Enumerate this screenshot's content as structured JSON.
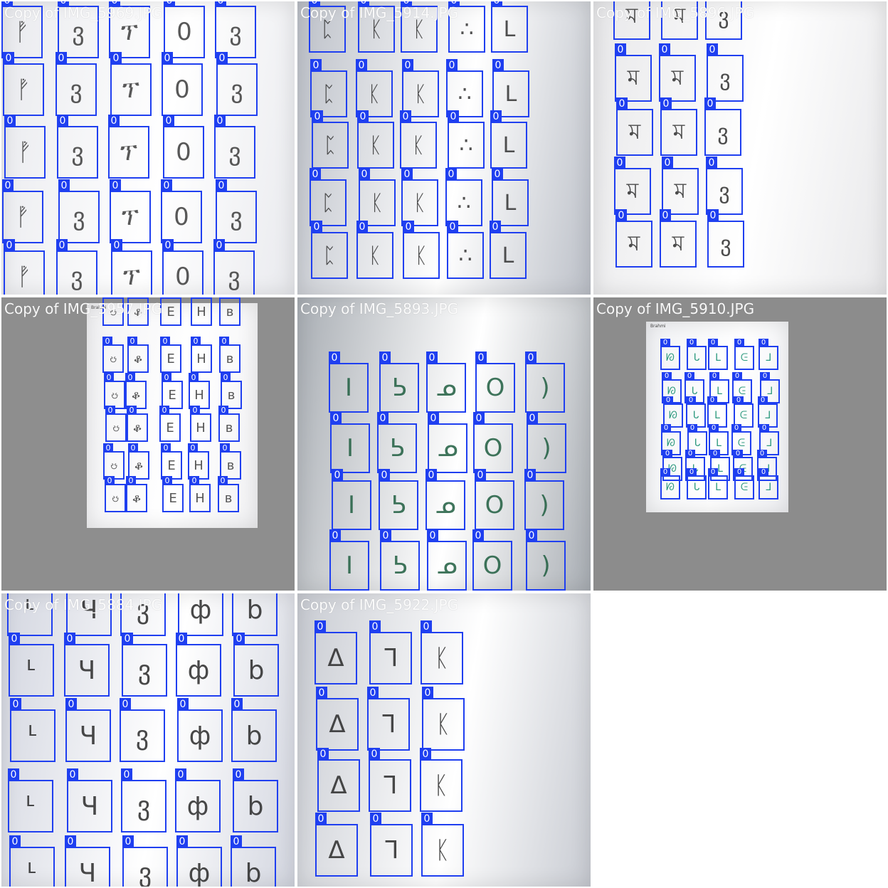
{
  "label_color": "#1f3ff0",
  "tiles": [
    {
      "title": "Copy of IMG_5969.JPG",
      "background": "#8c8c8c",
      "paper_color": "#e9eaee",
      "ink": "#3c3c3c",
      "glyphs": [
        "ᚡ",
        "ვ",
        "ፕ",
        "0",
        "ვ"
      ],
      "rows": 5,
      "label": "0"
    },
    {
      "title": "Copy of IMG_5914.JPG",
      "background": "#6f6f6f",
      "paper_color": "#bcc0c8",
      "ink": "#333333",
      "glyphs": [
        "ᛈ",
        "ᛕ",
        "ᛕ",
        "∴",
        "L"
      ],
      "rows": 5,
      "label": "0"
    },
    {
      "title": "Copy of IMG_5896.JPG",
      "background": "#9a9a9a",
      "paper_color": "#e8e8ea",
      "ink": "#2e2e2e",
      "glyphs": [
        "ম",
        "ম",
        "ვ"
      ],
      "rows": 5,
      "label": "0"
    },
    {
      "title": "Copy of IMG_5957.JPG",
      "background": "#8e8e8e",
      "paper_color": "#f2f2f4",
      "ink": "#3a3a3a",
      "glyphs": [
        "ၓ",
        "ቆ",
        "E",
        "H",
        "ʙ"
      ],
      "rows": 6,
      "label": "0",
      "header_text": "Brahmi"
    },
    {
      "title": "Copy of IMG_5893.JPG",
      "background": "#7c7c7c",
      "paper_color": "#a9aeb4",
      "ink": "#1f5e40",
      "glyphs": [
        "I",
        "ᕊ",
        "ᓄ",
        "O",
        ")"
      ],
      "rows": 4,
      "label": "0"
    },
    {
      "title": "Copy of IMG_5910.JPG",
      "background": "#8c8c8c",
      "paper_color": "#f1f2f5",
      "ink": "#0b8a6a",
      "glyphs": [
        "ᘗ",
        "ᒐ",
        "ᒪ",
        "ᕮ",
        "ᒧ"
      ],
      "rows": 6,
      "label": "0",
      "header_text": "Brahmi"
    },
    {
      "title": "Copy of IMG_5884.JPG",
      "background": "#d6d9e4",
      "paper_color": "#d3d6e0",
      "ink": "#2a2a2a",
      "glyphs": [
        "ᒻ",
        "Ч",
        "ვ",
        "ф",
        "b"
      ],
      "rows": 5,
      "label": "0"
    },
    {
      "title": "Copy of IMG_5922.JPG",
      "background": "#bfc3ca",
      "paper_color": "#c8cbd2",
      "ink": "#2a2a2a",
      "glyphs": [
        "Δ",
        "ᒣ",
        "ᛕ"
      ],
      "rows": 4,
      "label": "0"
    }
  ]
}
